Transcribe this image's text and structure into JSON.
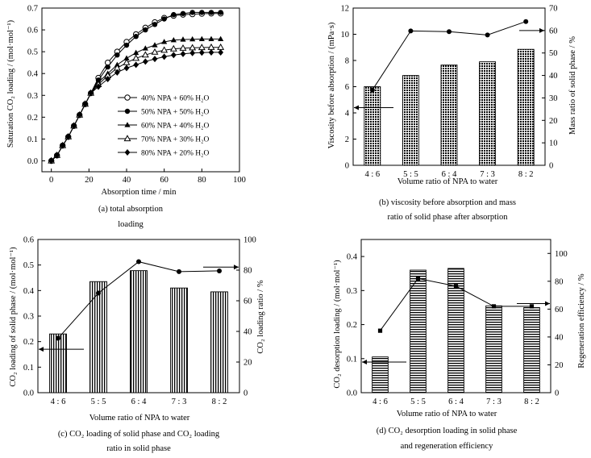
{
  "chart_data": [
    {
      "type": "line",
      "xlabel": "Absorption time / min",
      "ylabel": "Saturation CO₂ loading / (mol·mol⁻¹)",
      "caption_line1": "(a) total absorption",
      "caption_line2": "loading",
      "xlim": [
        -5,
        100
      ],
      "ylim": [
        -0.05,
        0.7
      ],
      "xticks": [
        0,
        20,
        40,
        60,
        80,
        100
      ],
      "yticks": [
        0.0,
        0.1,
        0.2,
        0.3,
        0.4,
        0.5,
        0.6,
        0.7
      ],
      "legend_position": "right-middle",
      "series": [
        {
          "name": "40% NPA + 60% H₂O",
          "marker": "circle-open",
          "x": [
            0,
            3,
            6,
            9,
            12,
            15,
            18,
            21,
            25,
            30,
            35,
            40,
            45,
            50,
            55,
            60,
            65,
            70,
            75,
            80,
            85,
            90
          ],
          "y": [
            0,
            0.025,
            0.07,
            0.11,
            0.16,
            0.21,
            0.26,
            0.31,
            0.38,
            0.45,
            0.5,
            0.545,
            0.58,
            0.61,
            0.635,
            0.655,
            0.665,
            0.67,
            0.672,
            0.674,
            0.675,
            0.675
          ]
        },
        {
          "name": "50% NPA + 50% H₂O",
          "marker": "circle-filled",
          "x": [
            0,
            3,
            6,
            9,
            12,
            15,
            18,
            21,
            25,
            30,
            35,
            40,
            45,
            50,
            55,
            60,
            65,
            70,
            75,
            80,
            85,
            90
          ],
          "y": [
            0,
            0.025,
            0.07,
            0.11,
            0.16,
            0.21,
            0.26,
            0.31,
            0.37,
            0.43,
            0.485,
            0.53,
            0.57,
            0.6,
            0.625,
            0.65,
            0.67,
            0.675,
            0.68,
            0.68,
            0.68,
            0.68
          ]
        },
        {
          "name": "60% NPA + 40% H₂O",
          "marker": "triangle-filled",
          "x": [
            0,
            3,
            6,
            9,
            12,
            15,
            18,
            21,
            25,
            30,
            35,
            40,
            45,
            50,
            55,
            60,
            65,
            70,
            75,
            80,
            85,
            90
          ],
          "y": [
            0,
            0.025,
            0.07,
            0.11,
            0.16,
            0.21,
            0.26,
            0.31,
            0.36,
            0.4,
            0.44,
            0.47,
            0.495,
            0.515,
            0.53,
            0.545,
            0.553,
            0.556,
            0.557,
            0.558,
            0.558,
            0.558
          ]
        },
        {
          "name": "70% NPA + 30% H₂O",
          "marker": "triangle-open",
          "x": [
            0,
            3,
            6,
            9,
            12,
            15,
            18,
            21,
            25,
            30,
            35,
            40,
            45,
            50,
            55,
            60,
            65,
            70,
            75,
            80,
            85,
            90
          ],
          "y": [
            0,
            0.025,
            0.07,
            0.11,
            0.16,
            0.21,
            0.26,
            0.31,
            0.35,
            0.39,
            0.425,
            0.45,
            0.47,
            0.485,
            0.498,
            0.507,
            0.513,
            0.516,
            0.518,
            0.519,
            0.52,
            0.52
          ]
        },
        {
          "name": "80% NPA + 20% H₂O",
          "marker": "diamond-filled",
          "x": [
            0,
            3,
            6,
            9,
            12,
            15,
            18,
            21,
            25,
            30,
            35,
            40,
            45,
            50,
            55,
            60,
            65,
            70,
            75,
            80,
            85,
            90
          ],
          "y": [
            0,
            0.025,
            0.07,
            0.11,
            0.16,
            0.21,
            0.26,
            0.31,
            0.34,
            0.375,
            0.405,
            0.425,
            0.44,
            0.455,
            0.467,
            0.477,
            0.485,
            0.49,
            0.494,
            0.496,
            0.497,
            0.497
          ]
        }
      ]
    },
    {
      "type": "bar+line",
      "xlabel": "Volume ratio of NPA to water",
      "ylabel_left": "Viscosity before absorption / (mPa·s)",
      "ylabel_right": "Mass ratio of solid phase / %",
      "caption_line1": "(b) viscosity before absorption and mass",
      "caption_line2": "ratio of solid phase after absorption",
      "categories": [
        "4 : 6",
        "5 : 5",
        "6 : 4",
        "7 : 3",
        "8 : 2"
      ],
      "bar_values": [
        6.0,
        6.85,
        7.65,
        7.9,
        8.85
      ],
      "line_values": [
        33.5,
        59.8,
        59.5,
        58.0,
        64.0
      ],
      "ylim_left": [
        0,
        12
      ],
      "yticks_left": [
        0,
        2,
        4,
        6,
        8,
        10,
        12
      ],
      "ylim_right": [
        0,
        70
      ],
      "yticks_right": [
        0,
        10,
        20,
        30,
        40,
        50,
        60,
        70
      ],
      "bar_pattern": "dense-grid"
    },
    {
      "type": "bar+line",
      "xlabel": "Volume ratio of NPA to water",
      "ylabel_left": "CO₂ loading of solid phase / (mol·mol⁻¹)",
      "ylabel_right": "CO₂ loading ratio / %",
      "caption_line1": "(c) CO₂ loading of solid phase and CO₂ loading",
      "caption_line2": "ratio in solid phase",
      "categories": [
        "4 : 6",
        "5 : 5",
        "6 : 4",
        "7 : 3",
        "8 : 2"
      ],
      "bar_values": [
        0.23,
        0.435,
        0.478,
        0.41,
        0.395
      ],
      "line_values": [
        35.5,
        65.0,
        85.5,
        79.0,
        79.5
      ],
      "ylim_left": [
        0,
        0.6
      ],
      "yticks_left": [
        0.0,
        0.1,
        0.2,
        0.3,
        0.4,
        0.5,
        0.6
      ],
      "ylim_right": [
        0,
        100
      ],
      "yticks_right": [
        0,
        20,
        40,
        60,
        80,
        100
      ],
      "bar_pattern": "vertical-lines"
    },
    {
      "type": "bar+line",
      "xlabel": "Volume ratio of NPA to water",
      "ylabel_left": "CO₂ desorption loading / (mol·mol⁻¹)",
      "ylabel_right": "Regeneration efficiency / %",
      "caption_line1": "(d) CO₂ desorption loading in solid phase",
      "caption_line2": "and regeneration efficiency",
      "categories": [
        "4 : 6",
        "5 : 5",
        "6 : 4",
        "7 : 3",
        "8 : 2"
      ],
      "bar_values": [
        0.105,
        0.36,
        0.365,
        0.255,
        0.25
      ],
      "line_values": [
        44.5,
        82.0,
        76.5,
        62.0,
        62.0
      ],
      "ylim_left": [
        0,
        0.45
      ],
      "yticks_left": [
        0.0,
        0.1,
        0.2,
        0.3,
        0.4
      ],
      "ylim_right": [
        0,
        110
      ],
      "yticks_right": [
        0,
        20,
        40,
        60,
        80,
        100
      ],
      "bar_pattern": "horizontal-lines"
    }
  ]
}
